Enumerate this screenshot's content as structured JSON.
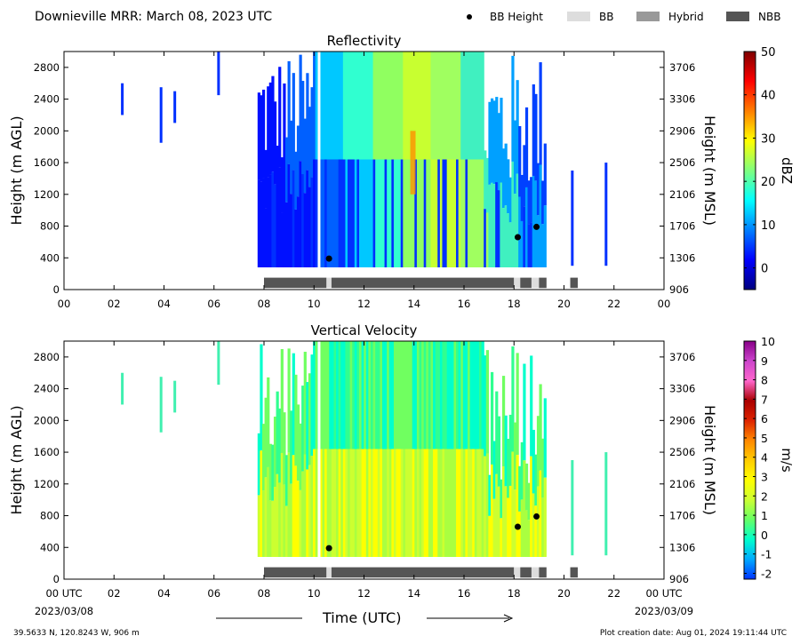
{
  "header": {
    "title": "Downieville MRR:  March 08, 2023 UTC",
    "legend": [
      {
        "label": "BB Height",
        "marker": "dot",
        "color": "#000000"
      },
      {
        "label": "BB",
        "marker": "rect",
        "color": "#dddddd"
      },
      {
        "label": "Hybrid",
        "marker": "rect",
        "color": "#999999"
      },
      {
        "label": "NBB",
        "marker": "rect",
        "color": "#555555"
      }
    ]
  },
  "footer": {
    "location": "39.5633 N, 120.8243 W, 906 m",
    "created": "Plot creation date: Aug 01, 2024 19:11:44 UTC",
    "xlabel": "Time (UTC)",
    "start_date": "2023/03/08",
    "end_date": "2023/03/09"
  },
  "colors": {
    "nbb": "#555555",
    "bb": "#dddddd",
    "hybrid": "#999999"
  },
  "chart_data": [
    {
      "type": "heatmap",
      "title": "Reflectivity",
      "ylabel": "Height (m AGL)",
      "y2label": "Height (m MSL)",
      "cbar_label": "dBZ",
      "cbar_ticks": [
        0,
        10,
        20,
        30,
        40,
        50
      ],
      "cbar_range": [
        -5,
        50
      ],
      "cbar_colors": [
        "#00007f",
        "#0000ff",
        "#007fff",
        "#00ffff",
        "#7fff7f",
        "#ffff00",
        "#ff7f00",
        "#ff0000",
        "#7f0000"
      ],
      "x_ticks": [
        "00",
        "02",
        "04",
        "06",
        "08",
        "10",
        "12",
        "14",
        "16",
        "18",
        "20",
        "22",
        "00"
      ],
      "xlim": [
        0,
        24
      ],
      "ylim": [
        0,
        3000
      ],
      "y_ticks": [
        0,
        400,
        800,
        1200,
        1600,
        2000,
        2400,
        2800
      ],
      "y2_ticks": [
        "906",
        "1306",
        "1706",
        "2106",
        "2506",
        "2906",
        "3306",
        "3706"
      ],
      "bb_height_points": [
        {
          "x": 10.6,
          "y": 390
        },
        {
          "x": 18.15,
          "y": 660
        },
        {
          "x": 18.9,
          "y": 790
        }
      ],
      "bb_type_segments": [
        {
          "start": 8.0,
          "end": 10.5,
          "type": "NBB"
        },
        {
          "start": 10.5,
          "end": 10.7,
          "type": "BB"
        },
        {
          "start": 10.7,
          "end": 18.0,
          "type": "NBB"
        },
        {
          "start": 18.0,
          "end": 18.25,
          "type": "BB"
        },
        {
          "start": 18.25,
          "end": 18.7,
          "type": "NBB"
        },
        {
          "start": 18.7,
          "end": 19.0,
          "type": "BB"
        },
        {
          "start": 19.0,
          "end": 19.3,
          "type": "NBB"
        },
        {
          "start": 20.25,
          "end": 20.55,
          "type": "NBB"
        }
      ]
    },
    {
      "type": "heatmap",
      "title": "Vertical Velocity",
      "ylabel": "Height (m AGL)",
      "y2label": "Height (m MSL)",
      "cbar_label": "m/s",
      "cbar_ticks": [
        -2,
        -1,
        0,
        1,
        2,
        3,
        4,
        5,
        6,
        7,
        8,
        9,
        10
      ],
      "cbar_range": [
        -2.3,
        10
      ],
      "cbar_colors": [
        "#0033ff",
        "#00aaff",
        "#00ffcc",
        "#66ff66",
        "#ccff33",
        "#ffff00",
        "#ffcc00",
        "#ff8800",
        "#dd2200",
        "#aa0000",
        "#ff66cc",
        "#cc44cc",
        "#880088"
      ],
      "x_ticks": [
        "00 UTC",
        "02",
        "04",
        "06",
        "08",
        "10",
        "12",
        "14",
        "16",
        "18",
        "20",
        "22",
        "00 UTC"
      ],
      "xlim": [
        0,
        24
      ],
      "ylim": [
        0,
        3000
      ],
      "y_ticks": [
        0,
        400,
        800,
        1200,
        1600,
        2000,
        2400,
        2800
      ],
      "y2_ticks": [
        "906",
        "1306",
        "1706",
        "2106",
        "2506",
        "2906",
        "3306",
        "3706"
      ],
      "bb_height_points": [
        {
          "x": 10.6,
          "y": 390
        },
        {
          "x": 18.15,
          "y": 660
        },
        {
          "x": 18.9,
          "y": 790
        }
      ],
      "bb_type_segments": [
        {
          "start": 8.0,
          "end": 10.5,
          "type": "NBB"
        },
        {
          "start": 10.5,
          "end": 10.7,
          "type": "BB"
        },
        {
          "start": 10.7,
          "end": 18.0,
          "type": "NBB"
        },
        {
          "start": 18.0,
          "end": 18.25,
          "type": "BB"
        },
        {
          "start": 18.25,
          "end": 18.7,
          "type": "NBB"
        },
        {
          "start": 18.7,
          "end": 19.0,
          "type": "BB"
        },
        {
          "start": 19.0,
          "end": 19.3,
          "type": "NBB"
        },
        {
          "start": 20.25,
          "end": 20.55,
          "type": "NBB"
        }
      ]
    }
  ]
}
